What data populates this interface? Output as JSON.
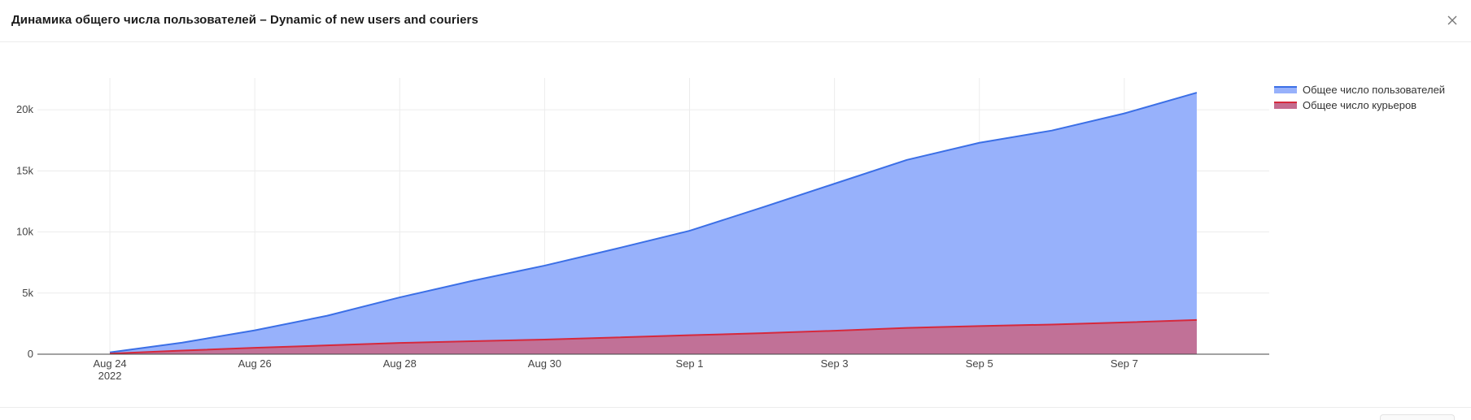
{
  "header": {
    "title": "Динамика общего числа пользователей – Dynamic of new users and couriers"
  },
  "chart_data": {
    "type": "area",
    "x": [
      "2022-08-24",
      "2022-08-25",
      "2022-08-26",
      "2022-08-27",
      "2022-08-28",
      "2022-08-29",
      "2022-08-30",
      "2022-08-31",
      "2022-09-01",
      "2022-09-02",
      "2022-09-03",
      "2022-09-04",
      "2022-09-05",
      "2022-09-06",
      "2022-09-07",
      "2022-09-08"
    ],
    "series": [
      {
        "name": "Общее число пользователей",
        "color": "#3b6fe6",
        "fill": "#97b1fb",
        "values": [
          150,
          950,
          1950,
          3150,
          4650,
          6000,
          7250,
          8650,
          10100,
          12000,
          13950,
          15900,
          17300,
          18300,
          19700,
          21400
        ]
      },
      {
        "name": "Общее число курьеров",
        "color": "#d6293c",
        "fill": "#c46b8e",
        "values": [
          50,
          300,
          520,
          720,
          920,
          1060,
          1200,
          1370,
          1550,
          1720,
          1920,
          2150,
          2300,
          2430,
          2600,
          2800
        ]
      }
    ],
    "x_ticks": [
      {
        "value": "2022-08-24",
        "label": "Aug 24",
        "sublabel": "2022"
      },
      {
        "value": "2022-08-26",
        "label": "Aug 26"
      },
      {
        "value": "2022-08-28",
        "label": "Aug 28"
      },
      {
        "value": "2022-08-30",
        "label": "Aug 30"
      },
      {
        "value": "2022-09-01",
        "label": "Sep 1"
      },
      {
        "value": "2022-09-03",
        "label": "Sep 3"
      },
      {
        "value": "2022-09-05",
        "label": "Sep 5"
      },
      {
        "value": "2022-09-07",
        "label": "Sep 7"
      }
    ],
    "y_ticks": [
      {
        "value": 0,
        "label": "0"
      },
      {
        "value": 5000,
        "label": "5k"
      },
      {
        "value": 10000,
        "label": "10k"
      },
      {
        "value": 15000,
        "label": "15k"
      },
      {
        "value": 20000,
        "label": "20k"
      }
    ],
    "xlim": [
      "2022-08-23",
      "2022-09-09"
    ],
    "ylim": [
      0,
      22600
    ],
    "grid": true,
    "legend_position": "top-right",
    "title": "",
    "xlabel": "",
    "ylabel": ""
  }
}
